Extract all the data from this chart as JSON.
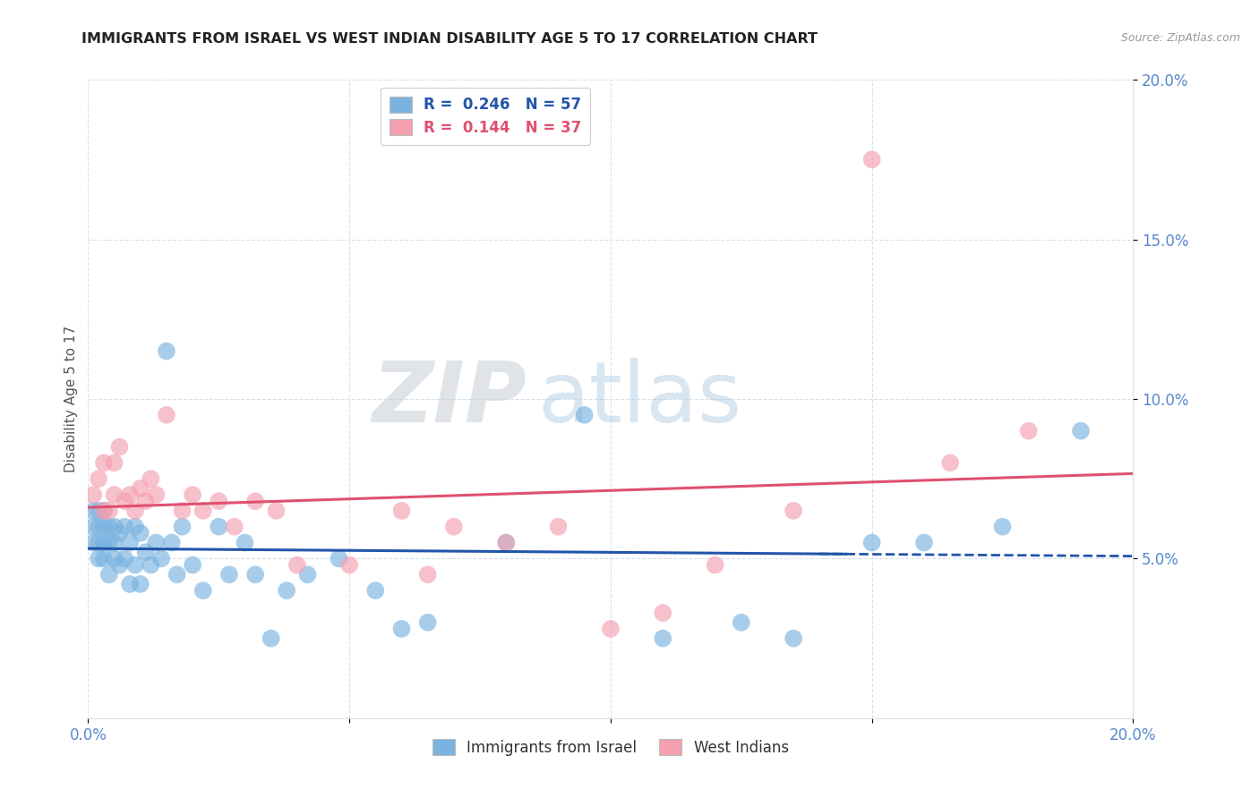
{
  "title": "IMMIGRANTS FROM ISRAEL VS WEST INDIAN DISABILITY AGE 5 TO 17 CORRELATION CHART",
  "source": "Source: ZipAtlas.com",
  "ylabel": "Disability Age 5 to 17",
  "xlabel": "",
  "xlim": [
    0.0,
    0.2
  ],
  "ylim": [
    0.0,
    0.2
  ],
  "yticks": [
    0.05,
    0.1,
    0.15,
    0.2
  ],
  "ytick_labels": [
    "5.0%",
    "10.0%",
    "15.0%",
    "20.0%"
  ],
  "xticks": [
    0.0,
    0.05,
    0.1,
    0.15,
    0.2
  ],
  "xtick_labels": [
    "0.0%",
    "",
    "",
    "",
    "20.0%"
  ],
  "israel_R": 0.246,
  "israel_N": 57,
  "westindian_R": 0.144,
  "westindian_N": 37,
  "israel_color": "#7ab3e0",
  "westindian_color": "#f4a0b0",
  "israel_line_color": "#2255aa",
  "westindian_line_color": "#e05070",
  "grid_color": "#d8e0ec",
  "title_color": "#222222",
  "axis_label_color": "#555555",
  "tick_label_color": "#5588cc",
  "source_color": "#999999",
  "background_color": "#ffffff",
  "israel_x": [
    0.001,
    0.001,
    0.001,
    0.002,
    0.002,
    0.002,
    0.002,
    0.003,
    0.003,
    0.003,
    0.003,
    0.004,
    0.004,
    0.004,
    0.005,
    0.005,
    0.005,
    0.006,
    0.006,
    0.007,
    0.007,
    0.008,
    0.008,
    0.009,
    0.009,
    0.01,
    0.01,
    0.011,
    0.012,
    0.013,
    0.014,
    0.015,
    0.016,
    0.017,
    0.018,
    0.02,
    0.022,
    0.025,
    0.027,
    0.03,
    0.032,
    0.035,
    0.038,
    0.042,
    0.048,
    0.055,
    0.06,
    0.065,
    0.08,
    0.095,
    0.11,
    0.125,
    0.135,
    0.15,
    0.16,
    0.175,
    0.19
  ],
  "israel_y": [
    0.055,
    0.06,
    0.065,
    0.05,
    0.055,
    0.06,
    0.065,
    0.05,
    0.055,
    0.06,
    0.065,
    0.045,
    0.055,
    0.06,
    0.05,
    0.055,
    0.06,
    0.048,
    0.058,
    0.05,
    0.06,
    0.042,
    0.055,
    0.048,
    0.06,
    0.042,
    0.058,
    0.052,
    0.048,
    0.055,
    0.05,
    0.115,
    0.055,
    0.045,
    0.06,
    0.048,
    0.04,
    0.06,
    0.045,
    0.055,
    0.045,
    0.025,
    0.04,
    0.045,
    0.05,
    0.04,
    0.028,
    0.03,
    0.055,
    0.095,
    0.025,
    0.03,
    0.025,
    0.055,
    0.055,
    0.06,
    0.09
  ],
  "westindian_x": [
    0.001,
    0.002,
    0.003,
    0.003,
    0.004,
    0.005,
    0.005,
    0.006,
    0.007,
    0.008,
    0.009,
    0.01,
    0.011,
    0.012,
    0.013,
    0.015,
    0.018,
    0.02,
    0.022,
    0.025,
    0.028,
    0.032,
    0.036,
    0.04,
    0.05,
    0.06,
    0.065,
    0.07,
    0.08,
    0.09,
    0.1,
    0.11,
    0.12,
    0.135,
    0.15,
    0.165,
    0.18
  ],
  "westindian_y": [
    0.07,
    0.075,
    0.065,
    0.08,
    0.065,
    0.07,
    0.08,
    0.085,
    0.068,
    0.07,
    0.065,
    0.072,
    0.068,
    0.075,
    0.07,
    0.095,
    0.065,
    0.07,
    0.065,
    0.068,
    0.06,
    0.068,
    0.065,
    0.048,
    0.048,
    0.065,
    0.045,
    0.06,
    0.055,
    0.06,
    0.028,
    0.033,
    0.048,
    0.065,
    0.175,
    0.08,
    0.09
  ]
}
